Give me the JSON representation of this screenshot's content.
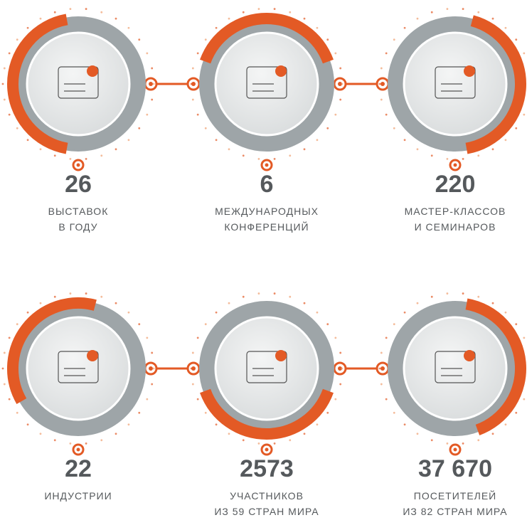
{
  "stats": [
    {
      "number": "26",
      "label": [
        "ВЫСТАВОК",
        "В ГОДУ"
      ]
    },
    {
      "number": "6",
      "label": [
        "МЕЖДУНАРОДНЫХ",
        "КОНФЕРЕНЦИЙ"
      ]
    },
    {
      "number": "220",
      "label": [
        "МАСТЕР-КЛАССОВ",
        "И СЕМИНАРОВ"
      ]
    },
    {
      "number": "22",
      "label": [
        "ИНДУСТРИИ"
      ]
    },
    {
      "number": "2573",
      "label": [
        "УЧАСТНИКОВ",
        "ИЗ 59 СТРАН МИРА"
      ]
    },
    {
      "number": "37 670",
      "label": [
        "ПОСЕТИТЕЛЕЙ",
        "ИЗ 82 СТРАН МИРА"
      ]
    }
  ]
}
